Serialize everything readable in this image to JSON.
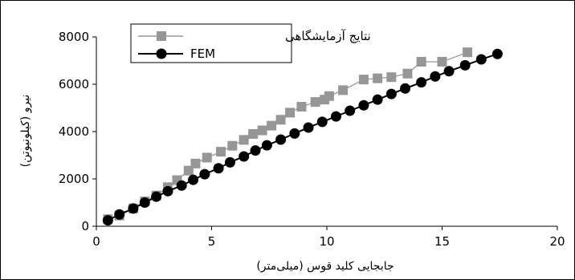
{
  "chart_data": {
    "type": "line",
    "xlabel": "جابجایی کلید قوس (میلی‌متر)",
    "ylabel": "نیرو (کیلونیوتن)",
    "xlim": [
      0,
      20
    ],
    "ylim": [
      0,
      8000
    ],
    "xticks": [
      0,
      5,
      10,
      15,
      20
    ],
    "yticks": [
      0,
      2000,
      4000,
      6000,
      8000
    ],
    "grid": false,
    "legend_position": "top-left",
    "series": [
      {
        "name": "نتایج آزمایشگاهی",
        "color": "#969696",
        "marker": "square",
        "points": [
          [
            0.5,
            300
          ],
          [
            1.0,
            450
          ],
          [
            1.6,
            750
          ],
          [
            2.1,
            1050
          ],
          [
            2.6,
            1300
          ],
          [
            3.1,
            1650
          ],
          [
            3.5,
            1950
          ],
          [
            4.0,
            2350
          ],
          [
            4.3,
            2650
          ],
          [
            4.8,
            2900
          ],
          [
            5.4,
            3150
          ],
          [
            5.9,
            3400
          ],
          [
            6.4,
            3650
          ],
          [
            6.8,
            3900
          ],
          [
            7.2,
            4050
          ],
          [
            7.6,
            4250
          ],
          [
            8.0,
            4500
          ],
          [
            8.4,
            4800
          ],
          [
            8.9,
            5050
          ],
          [
            9.5,
            5250
          ],
          [
            9.9,
            5350
          ],
          [
            10.1,
            5500
          ],
          [
            10.7,
            5750
          ],
          [
            11.6,
            6200
          ],
          [
            12.2,
            6250
          ],
          [
            12.8,
            6300
          ],
          [
            13.5,
            6450
          ],
          [
            14.1,
            6950
          ],
          [
            15.0,
            6950
          ],
          [
            16.1,
            7350
          ]
        ]
      },
      {
        "name": "FEM",
        "color": "#000000",
        "marker": "circle",
        "points": [
          [
            0.5,
            250
          ],
          [
            1.0,
            500
          ],
          [
            1.6,
            750
          ],
          [
            2.1,
            1000
          ],
          [
            2.6,
            1250
          ],
          [
            3.1,
            1480
          ],
          [
            3.7,
            1720
          ],
          [
            4.2,
            1960
          ],
          [
            4.7,
            2200
          ],
          [
            5.3,
            2450
          ],
          [
            5.8,
            2700
          ],
          [
            6.4,
            2950
          ],
          [
            6.9,
            3200
          ],
          [
            7.4,
            3420
          ],
          [
            8.0,
            3660
          ],
          [
            8.6,
            3920
          ],
          [
            9.2,
            4170
          ],
          [
            9.8,
            4410
          ],
          [
            10.4,
            4640
          ],
          [
            11.0,
            4880
          ],
          [
            11.6,
            5110
          ],
          [
            12.2,
            5350
          ],
          [
            12.8,
            5590
          ],
          [
            13.4,
            5820
          ],
          [
            14.1,
            6080
          ],
          [
            14.7,
            6330
          ],
          [
            15.3,
            6550
          ],
          [
            16.0,
            6800
          ],
          [
            16.7,
            7050
          ],
          [
            17.4,
            7280
          ]
        ]
      }
    ]
  }
}
